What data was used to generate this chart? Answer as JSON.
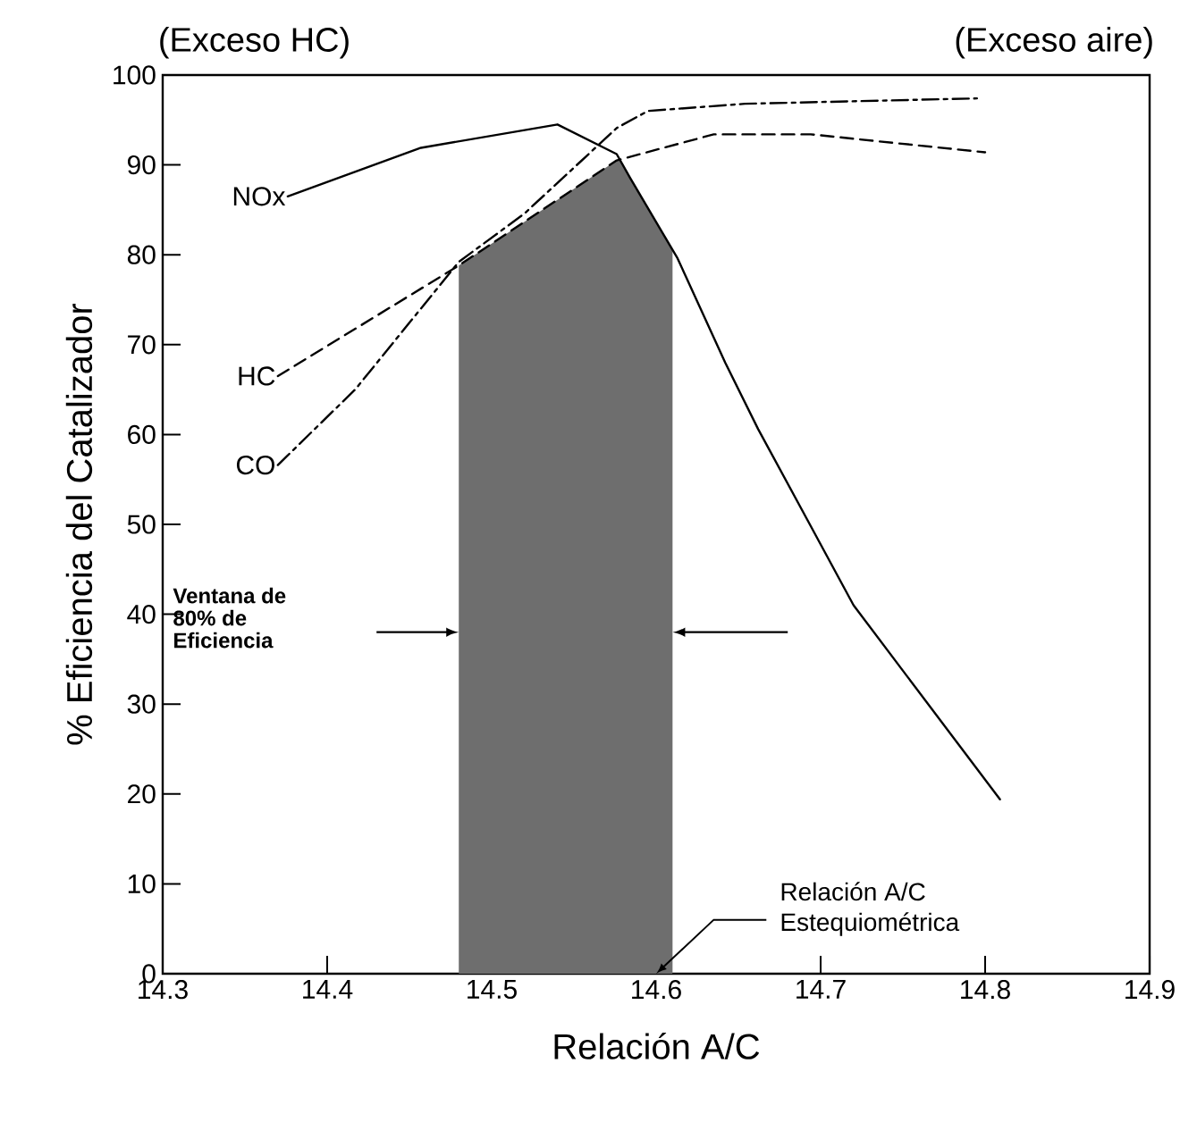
{
  "chart_data": {
    "type": "line",
    "xlabel": "Relación A/C",
    "ylabel": "% Eficiencia del Catalizador",
    "xlim": [
      14.3,
      14.9
    ],
    "ylim": [
      0,
      100
    ],
    "xticks": [
      14.3,
      14.4,
      14.5,
      14.6,
      14.7,
      14.8,
      14.9
    ],
    "yticks": [
      0,
      10,
      20,
      30,
      40,
      50,
      60,
      70,
      80,
      90,
      100
    ],
    "grid": false,
    "marker": "none",
    "series": [
      {
        "name": "NOx",
        "color": "#000000",
        "line_style": "solid",
        "x": [
          14.376,
          14.457,
          14.54,
          14.576,
          14.584,
          14.613,
          14.642,
          14.662,
          14.694,
          14.72,
          14.809
        ],
        "values": [
          86.5,
          91.9,
          94.5,
          91.2,
          88.6,
          79.6,
          68,
          60.6,
          49.8,
          41,
          19.4
        ]
      },
      {
        "name": "HC",
        "color": "#000000",
        "line_style": "dashed",
        "x": [
          14.37,
          14.48,
          14.576,
          14.635,
          14.694,
          14.8
        ],
        "values": [
          66.5,
          78.8,
          90.5,
          93.4,
          93.4,
          91.4
        ]
      },
      {
        "name": "CO",
        "color": "#000000",
        "line_style": "dashdot",
        "x": [
          14.37,
          14.417,
          14.48,
          14.52,
          14.576,
          14.595,
          14.654,
          14.795
        ],
        "values": [
          56.6,
          65,
          79.2,
          84.6,
          94.1,
          96,
          96.8,
          97.4
        ]
      }
    ],
    "bands": [
      {
        "axis": "x",
        "from": 14.48,
        "to": 14.61,
        "color": "#6e6e6e"
      }
    ],
    "annotations": [
      "(Exceso HC)",
      "(Exceso aire)",
      "Ventana de 80% de Eficiencia",
      {
        "text": "Relación A/C Estequiométrica",
        "x": 14.6,
        "y": 0
      }
    ]
  }
}
